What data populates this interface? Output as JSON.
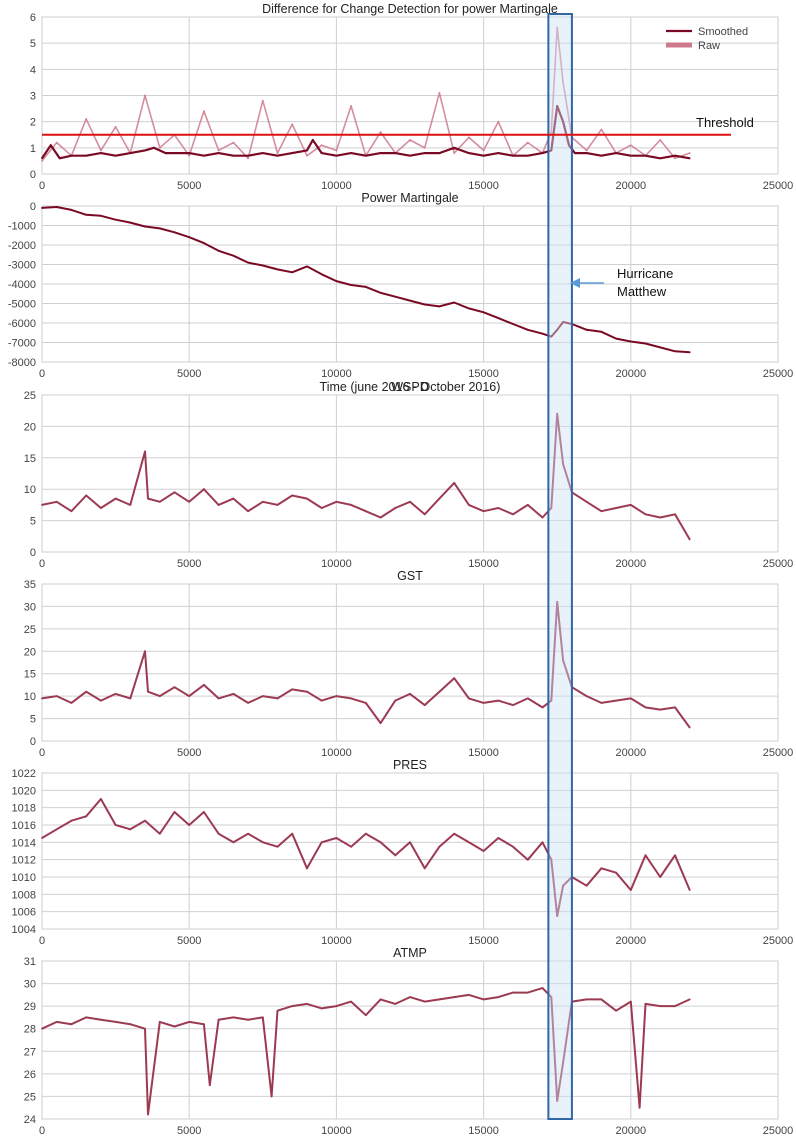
{
  "colors": {
    "raw": "#cc7a8c",
    "smoothed": "#7a0a24",
    "series": "#9c3a52",
    "threshold": "#dd1111",
    "grid": "#cfcfd6",
    "highlight_fill": "#cfe0f3",
    "highlight_stroke": "#2e68a6",
    "arrow": "#5b9bd5"
  },
  "annotations": {
    "threshold_label": "Threshold",
    "hurricane_line1": "Hurricane",
    "hurricane_line2": "Matthew",
    "time_label": "Time (june 2016 - October 2016)",
    "highlight_x_range": [
      17200,
      18000
    ]
  },
  "chart_data": [
    {
      "type": "line",
      "title": "Difference for Change Detection for power Martingale",
      "xlim": [
        0,
        25000
      ],
      "ylim": [
        0,
        6
      ],
      "xticks": [
        0,
        5000,
        10000,
        15000,
        20000,
        25000
      ],
      "yticks": [
        0,
        1,
        2,
        3,
        4,
        5,
        6
      ],
      "grid": true,
      "legend_position": "top-right",
      "threshold": 1.5,
      "series": [
        {
          "name": "Raw",
          "x": [
            0,
            500,
            1000,
            1500,
            2000,
            2500,
            3000,
            3500,
            4000,
            4500,
            5000,
            5500,
            6000,
            6500,
            7000,
            7500,
            8000,
            8500,
            9000,
            9500,
            10000,
            10500,
            11000,
            11500,
            12000,
            12500,
            13000,
            13500,
            14000,
            14500,
            15000,
            15500,
            16000,
            16500,
            17000,
            17300,
            17500,
            17700,
            18000,
            18500,
            19000,
            19500,
            20000,
            20500,
            21000,
            21500,
            22000
          ],
          "values": [
            0.5,
            1.2,
            0.7,
            2.1,
            0.9,
            1.8,
            0.8,
            3.0,
            1.0,
            1.5,
            0.7,
            2.4,
            0.9,
            1.2,
            0.6,
            2.8,
            0.8,
            1.9,
            0.7,
            1.1,
            0.9,
            2.6,
            0.7,
            1.6,
            0.8,
            1.3,
            1.0,
            3.1,
            0.8,
            1.4,
            0.9,
            2.0,
            0.7,
            1.2,
            0.8,
            1.6,
            5.6,
            3.5,
            1.4,
            0.9,
            1.7,
            0.8,
            1.1,
            0.7,
            1.3,
            0.6,
            0.8
          ]
        },
        {
          "name": "Smoothed",
          "x": [
            0,
            300,
            600,
            1000,
            1500,
            2000,
            2500,
            3000,
            3500,
            3800,
            4200,
            5000,
            5500,
            6000,
            6500,
            7000,
            7500,
            8000,
            8500,
            9000,
            9200,
            9500,
            10000,
            10500,
            11000,
            11500,
            12000,
            12500,
            13000,
            13500,
            14000,
            14500,
            15000,
            15500,
            16000,
            16500,
            17000,
            17300,
            17500,
            17700,
            17900,
            18100,
            18500,
            19000,
            19500,
            20000,
            20500,
            21000,
            21500,
            22000
          ],
          "values": [
            0.6,
            1.1,
            0.6,
            0.7,
            0.7,
            0.8,
            0.7,
            0.8,
            0.9,
            1.0,
            0.8,
            0.8,
            0.7,
            0.8,
            0.7,
            0.7,
            0.8,
            0.7,
            0.8,
            0.9,
            1.3,
            0.8,
            0.7,
            0.8,
            0.7,
            0.8,
            0.8,
            0.7,
            0.8,
            0.8,
            1.0,
            0.8,
            0.7,
            0.8,
            0.7,
            0.7,
            0.8,
            0.9,
            2.6,
            2.0,
            1.1,
            0.8,
            0.8,
            0.7,
            0.8,
            0.7,
            0.7,
            0.6,
            0.7,
            0.6
          ]
        }
      ]
    },
    {
      "type": "line",
      "title": "Power Martingale",
      "xlim": [
        0,
        25000
      ],
      "ylim": [
        -8000,
        0
      ],
      "xticks": [
        0,
        5000,
        10000,
        15000,
        20000,
        25000
      ],
      "yticks": [
        -8000,
        -7000,
        -6000,
        -5000,
        -4000,
        -3000,
        -2000,
        -1000,
        0
      ],
      "grid": true,
      "series": [
        {
          "x": [
            0,
            500,
            1000,
            1500,
            2000,
            2500,
            3000,
            3500,
            4000,
            4500,
            5000,
            5500,
            6000,
            6500,
            7000,
            7500,
            8000,
            8500,
            9000,
            9500,
            10000,
            10500,
            11000,
            11500,
            12000,
            12500,
            13000,
            13500,
            14000,
            14500,
            15000,
            15500,
            16000,
            16500,
            17000,
            17300,
            17500,
            17700,
            18000,
            18500,
            19000,
            19500,
            20000,
            20500,
            21000,
            21500,
            22000
          ],
          "values": [
            -100,
            -50,
            -200,
            -450,
            -500,
            -700,
            -850,
            -1050,
            -1150,
            -1350,
            -1600,
            -1900,
            -2300,
            -2550,
            -2900,
            -3050,
            -3250,
            -3400,
            -3100,
            -3500,
            -3850,
            -4050,
            -4150,
            -4450,
            -4650,
            -4850,
            -5050,
            -5150,
            -4950,
            -5250,
            -5450,
            -5750,
            -6050,
            -6350,
            -6550,
            -6700,
            -6350,
            -5950,
            -6050,
            -6350,
            -6450,
            -6800,
            -6950,
            -7050,
            -7250,
            -7450,
            -7500
          ]
        }
      ]
    },
    {
      "type": "line",
      "title": "WSPD",
      "xlim": [
        0,
        25000
      ],
      "ylim": [
        0,
        25
      ],
      "xticks": [
        0,
        5000,
        10000,
        15000,
        20000,
        25000
      ],
      "yticks": [
        0,
        5,
        10,
        15,
        20,
        25
      ],
      "grid": true,
      "series": [
        {
          "x": [
            0,
            500,
            1000,
            1500,
            2000,
            2500,
            3000,
            3500,
            3600,
            4000,
            4500,
            5000,
            5500,
            6000,
            6500,
            7000,
            7500,
            8000,
            8500,
            9000,
            9500,
            10000,
            10500,
            11000,
            11500,
            12000,
            12500,
            13000,
            13500,
            14000,
            14500,
            15000,
            15500,
            16000,
            16500,
            17000,
            17300,
            17500,
            17700,
            18000,
            18500,
            19000,
            19500,
            20000,
            20500,
            21000,
            21500,
            22000
          ],
          "values": [
            7.5,
            8.0,
            6.5,
            9.0,
            7.0,
            8.5,
            7.5,
            16.0,
            8.5,
            8.0,
            9.5,
            8.0,
            10.0,
            7.5,
            8.5,
            6.5,
            8.0,
            7.5,
            9.0,
            8.5,
            7.0,
            8.0,
            7.5,
            6.5,
            5.5,
            7.0,
            8.0,
            6.0,
            8.5,
            11.0,
            7.5,
            6.5,
            7.0,
            6.0,
            7.5,
            5.5,
            7.0,
            22.0,
            14.0,
            9.5,
            8.0,
            6.5,
            7.0,
            7.5,
            6.0,
            5.5,
            6.0,
            2.0
          ]
        }
      ]
    },
    {
      "type": "line",
      "title": "GST",
      "xlim": [
        0,
        25000
      ],
      "ylim": [
        0,
        35
      ],
      "xticks": [
        0,
        5000,
        10000,
        15000,
        20000,
        25000
      ],
      "yticks": [
        0,
        5,
        10,
        15,
        20,
        25,
        30,
        35
      ],
      "grid": true,
      "series": [
        {
          "x": [
            0,
            500,
            1000,
            1500,
            2000,
            2500,
            3000,
            3500,
            3600,
            4000,
            4500,
            5000,
            5500,
            6000,
            6500,
            7000,
            7500,
            8000,
            8500,
            9000,
            9500,
            10000,
            10500,
            11000,
            11500,
            12000,
            12500,
            13000,
            13500,
            14000,
            14500,
            15000,
            15500,
            16000,
            16500,
            17000,
            17300,
            17500,
            17700,
            18000,
            18500,
            19000,
            19500,
            20000,
            20500,
            21000,
            21500,
            22000
          ],
          "values": [
            9.5,
            10.0,
            8.5,
            11.0,
            9.0,
            10.5,
            9.5,
            20.0,
            11.0,
            10.0,
            12.0,
            10.0,
            12.5,
            9.5,
            10.5,
            8.5,
            10.0,
            9.5,
            11.5,
            11.0,
            9.0,
            10.0,
            9.5,
            8.5,
            4.0,
            9.0,
            10.5,
            8.0,
            11.0,
            14.0,
            9.5,
            8.5,
            9.0,
            8.0,
            9.5,
            7.5,
            9.0,
            31.0,
            18.0,
            12.0,
            10.0,
            8.5,
            9.0,
            9.5,
            7.5,
            7.0,
            7.5,
            3.0
          ]
        }
      ]
    },
    {
      "type": "line",
      "title": "PRES",
      "xlim": [
        0,
        25000
      ],
      "ylim": [
        1004,
        1022
      ],
      "xticks": [
        0,
        5000,
        10000,
        15000,
        20000,
        25000
      ],
      "yticks": [
        1004,
        1006,
        1008,
        1010,
        1012,
        1014,
        1016,
        1018,
        1020,
        1022
      ],
      "grid": true,
      "series": [
        {
          "x": [
            0,
            500,
            1000,
            1500,
            2000,
            2500,
            3000,
            3500,
            4000,
            4500,
            5000,
            5500,
            6000,
            6500,
            7000,
            7500,
            8000,
            8500,
            9000,
            9500,
            10000,
            10500,
            11000,
            11500,
            12000,
            12500,
            13000,
            13500,
            14000,
            14500,
            15000,
            15500,
            16000,
            16500,
            17000,
            17300,
            17500,
            17700,
            18000,
            18500,
            19000,
            19500,
            20000,
            20500,
            21000,
            21500,
            22000
          ],
          "values": [
            1014.5,
            1015.5,
            1016.5,
            1017.0,
            1019.0,
            1016.0,
            1015.5,
            1016.5,
            1015.0,
            1017.5,
            1016.0,
            1017.5,
            1015.0,
            1014.0,
            1015.0,
            1014.0,
            1013.5,
            1015.0,
            1011.0,
            1014.0,
            1014.5,
            1013.5,
            1015.0,
            1014.0,
            1012.5,
            1014.0,
            1011.0,
            1013.5,
            1015.0,
            1014.0,
            1013.0,
            1014.5,
            1013.5,
            1012.0,
            1014.0,
            1012.0,
            1005.5,
            1009.0,
            1010.0,
            1009.0,
            1011.0,
            1010.5,
            1008.5,
            1012.5,
            1010.0,
            1012.5,
            1008.5
          ]
        }
      ]
    },
    {
      "type": "line",
      "title": "ATMP",
      "xlim": [
        0,
        25000
      ],
      "ylim": [
        24,
        31
      ],
      "xticks": [
        0,
        5000,
        10000,
        15000,
        20000,
        25000
      ],
      "yticks": [
        24,
        25,
        26,
        27,
        28,
        29,
        30,
        31
      ],
      "grid": true,
      "series": [
        {
          "x": [
            0,
            500,
            1000,
            1500,
            2000,
            2500,
            3000,
            3500,
            3600,
            4000,
            4500,
            5000,
            5500,
            5700,
            6000,
            6500,
            7000,
            7500,
            7800,
            8000,
            8500,
            9000,
            9500,
            10000,
            10500,
            11000,
            11500,
            12000,
            12500,
            13000,
            13500,
            14000,
            14500,
            15000,
            15500,
            16000,
            16500,
            17000,
            17300,
            17500,
            17700,
            18000,
            18500,
            19000,
            19500,
            20000,
            20300,
            20500,
            21000,
            21500,
            22000
          ],
          "values": [
            28.0,
            28.3,
            28.2,
            28.5,
            28.4,
            28.3,
            28.2,
            28.0,
            24.2,
            28.3,
            28.1,
            28.3,
            28.2,
            25.5,
            28.4,
            28.5,
            28.4,
            28.5,
            25.0,
            28.8,
            29.0,
            29.1,
            28.9,
            29.0,
            29.2,
            28.6,
            29.3,
            29.1,
            29.4,
            29.2,
            29.3,
            29.4,
            29.5,
            29.3,
            29.4,
            29.6,
            29.6,
            29.8,
            29.4,
            24.8,
            26.5,
            29.2,
            29.3,
            29.3,
            28.8,
            29.2,
            24.5,
            29.1,
            29.0,
            29.0,
            29.3
          ]
        }
      ]
    }
  ]
}
